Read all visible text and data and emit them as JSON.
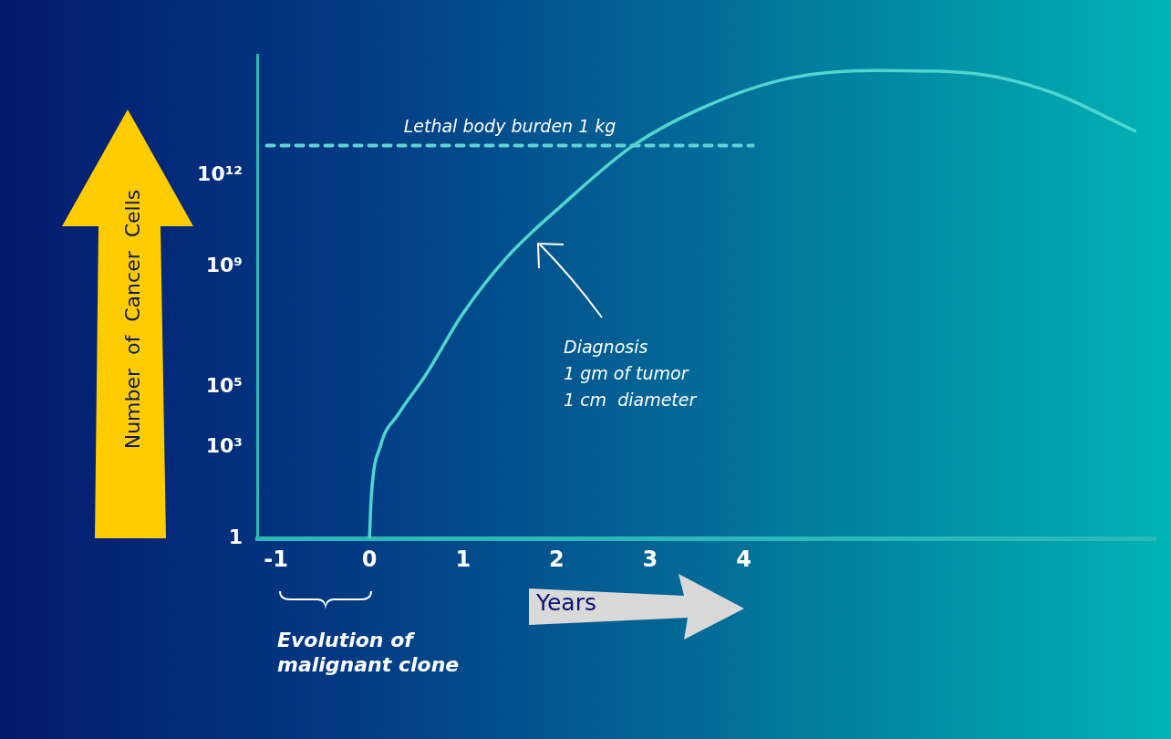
{
  "chart_data": {
    "type": "line",
    "xlabel": "Years",
    "ylabel": "Number of Cancer Cells",
    "x": [
      0,
      0.02,
      0.12,
      0.31,
      0.6,
      0.99,
      1.47,
      2.05,
      2.82,
      3.6,
      4.46,
      5.43,
      6.4,
      7.27,
      8.18
    ],
    "series": [
      {
        "color": "#4fd6cf",
        "values": [
          1,
          25,
          1200,
          13000,
          250000,
          25000000,
          2000000000,
          100000000000,
          10000000000000,
          200000000000000,
          1600000000000000,
          3000000000000000,
          2500000000000000,
          600000000000000,
          30000000000000
        ]
      }
    ],
    "xlim": [
      -1.2,
      8.4
    ],
    "xticks": [
      -1,
      0,
      1,
      2,
      3,
      4
    ],
    "ylim": [
      1,
      10000000000000000
    ],
    "log": "y",
    "yticks": [
      1,
      {
        "value": 1000,
        "label": "10³"
      },
      {
        "value": 100000,
        "label": "10⁵"
      },
      {
        "value": 1000000000,
        "label": "10⁹"
      },
      {
        "value": 1000000000000,
        "label": "10¹²"
      }
    ],
    "ref_lines": [
      {
        "axis": "y",
        "value": 10000000000000,
        "label": "Lethal body burden 1 kg",
        "color": "#5fd3d3",
        "line_style": "dashed"
      }
    ],
    "annotations": [
      "Diagnosis\n1 gm of tumor\n1 cm  diameter",
      "Evolution of\nmalignant clone"
    ],
    "grid": false,
    "legend": false,
    "marker": "none",
    "line_style": "solid"
  }
}
